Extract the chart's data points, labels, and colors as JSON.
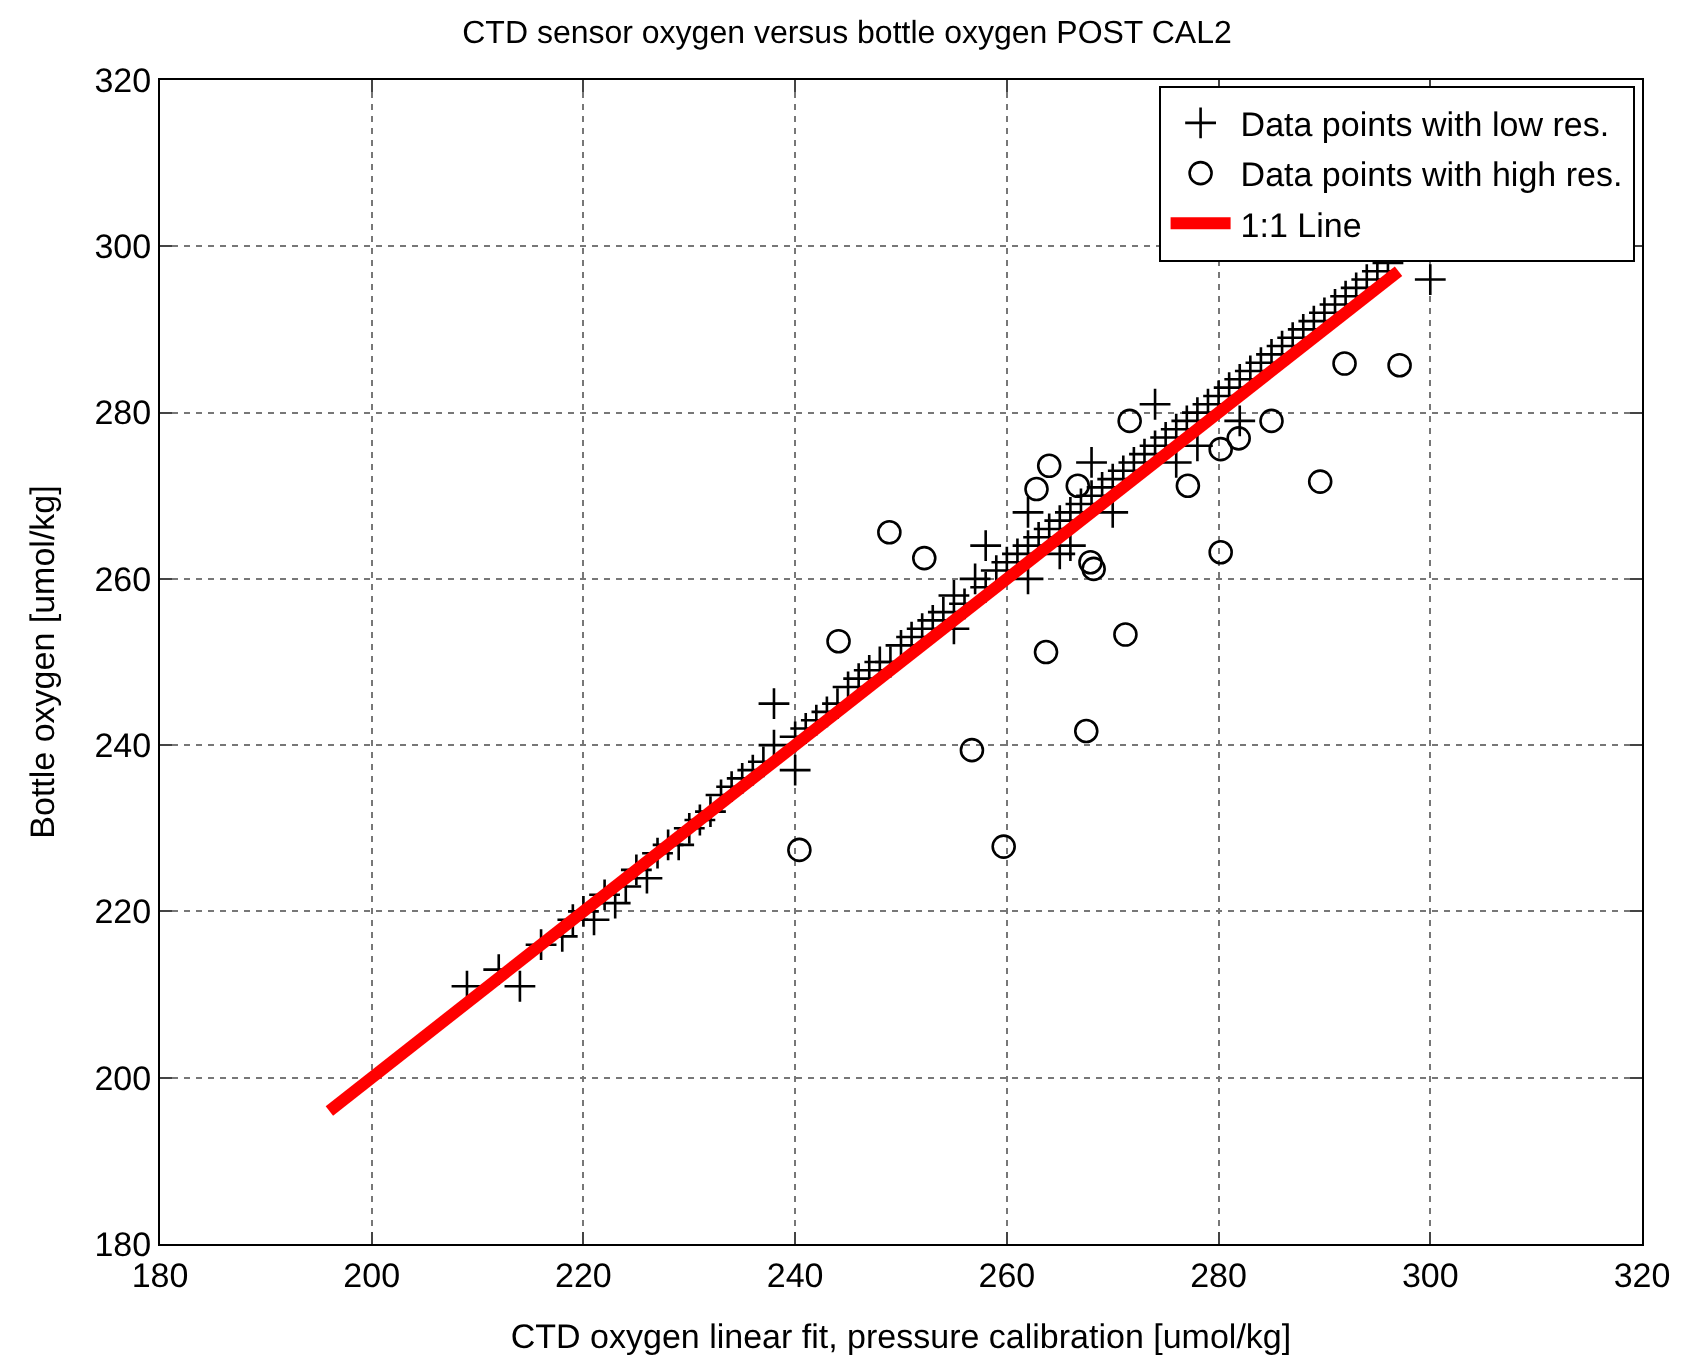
{
  "chart_data": {
    "type": "scatter",
    "title": "CTD sensor oxygen versus bottle oxygen POST CAL2",
    "xlabel": "CTD oxygen linear fit, pressure calibration [umol/kg]",
    "ylabel": "Bottle oxygen [umol/kg]",
    "xlim": [
      180,
      320
    ],
    "ylim": [
      180,
      320
    ],
    "xticks": [
      180,
      200,
      220,
      240,
      260,
      280,
      300,
      320
    ],
    "yticks": [
      180,
      200,
      220,
      240,
      260,
      280,
      300,
      320
    ],
    "grid": true,
    "legend": "top right",
    "series": [
      {
        "name": "Data points with low res.",
        "color": "#000000",
        "marker": "cross",
        "x": [
          209,
          212,
          214,
          216,
          218,
          219,
          220,
          221,
          222,
          223,
          224,
          225,
          226,
          227,
          228,
          229,
          230,
          231,
          232,
          233,
          234,
          235,
          236,
          237,
          238,
          238,
          240,
          240,
          241,
          242,
          243,
          244,
          245,
          246,
          247,
          248,
          249,
          250,
          251,
          252,
          253,
          254,
          255,
          255,
          256,
          257,
          258,
          259,
          260,
          261,
          262,
          262,
          263,
          264,
          265,
          266,
          266,
          267,
          268,
          269,
          270,
          270,
          271,
          272,
          273,
          274,
          275,
          276,
          276,
          277,
          278,
          279,
          280,
          281,
          282,
          282,
          283,
          284,
          285,
          286,
          287,
          288,
          289,
          290,
          291,
          292,
          293,
          294,
          295,
          296,
          300,
          258,
          262,
          268,
          274,
          265,
          278
        ],
        "values": [
          211,
          213,
          211,
          216,
          217,
          219,
          220,
          219,
          222,
          221,
          223,
          225,
          224,
          227,
          228,
          228,
          230,
          231,
          232,
          234,
          235,
          236,
          237,
          238,
          240,
          245,
          237,
          241,
          242,
          243,
          244,
          245,
          247,
          248,
          249,
          250,
          250,
          252,
          253,
          254,
          255,
          256,
          258,
          254,
          257,
          260,
          259,
          261,
          262,
          263,
          264,
          260,
          265,
          266,
          267,
          268,
          264,
          269,
          270,
          271,
          272,
          268,
          273,
          274,
          275,
          276,
          277,
          278,
          274,
          279,
          280,
          281,
          282,
          283,
          284,
          279,
          285,
          286,
          287,
          288,
          289,
          290,
          291,
          292,
          293,
          294,
          295,
          296,
          297,
          298,
          296,
          264,
          268,
          274,
          281,
          263,
          276
        ]
      },
      {
        "name": "Data points with high res.",
        "color": "#000000",
        "marker": "circle",
        "x": [
          240.4,
          259.7,
          256.7,
          267.5,
          244.1,
          263.7,
          248.9,
          252.2,
          264.0,
          262.8,
          266.7,
          267.9,
          268.2,
          271.2,
          271.6,
          277.1,
          280.2,
          281.9,
          285.0,
          289.6,
          280.2,
          291.9,
          297.1
        ],
        "values": [
          227.4,
          227.8,
          239.4,
          241.7,
          252.5,
          251.2,
          265.6,
          262.5,
          273.6,
          270.8,
          271.2,
          262.0,
          261.2,
          253.3,
          279.0,
          271.2,
          275.6,
          276.9,
          279.0,
          271.7,
          263.2,
          285.9,
          285.7
        ]
      },
      {
        "name": "1:1 Line",
        "type": "line",
        "color": "#ff0000",
        "marker": "none",
        "x": [
          196,
          297
        ],
        "values": [
          196,
          297
        ]
      }
    ]
  }
}
